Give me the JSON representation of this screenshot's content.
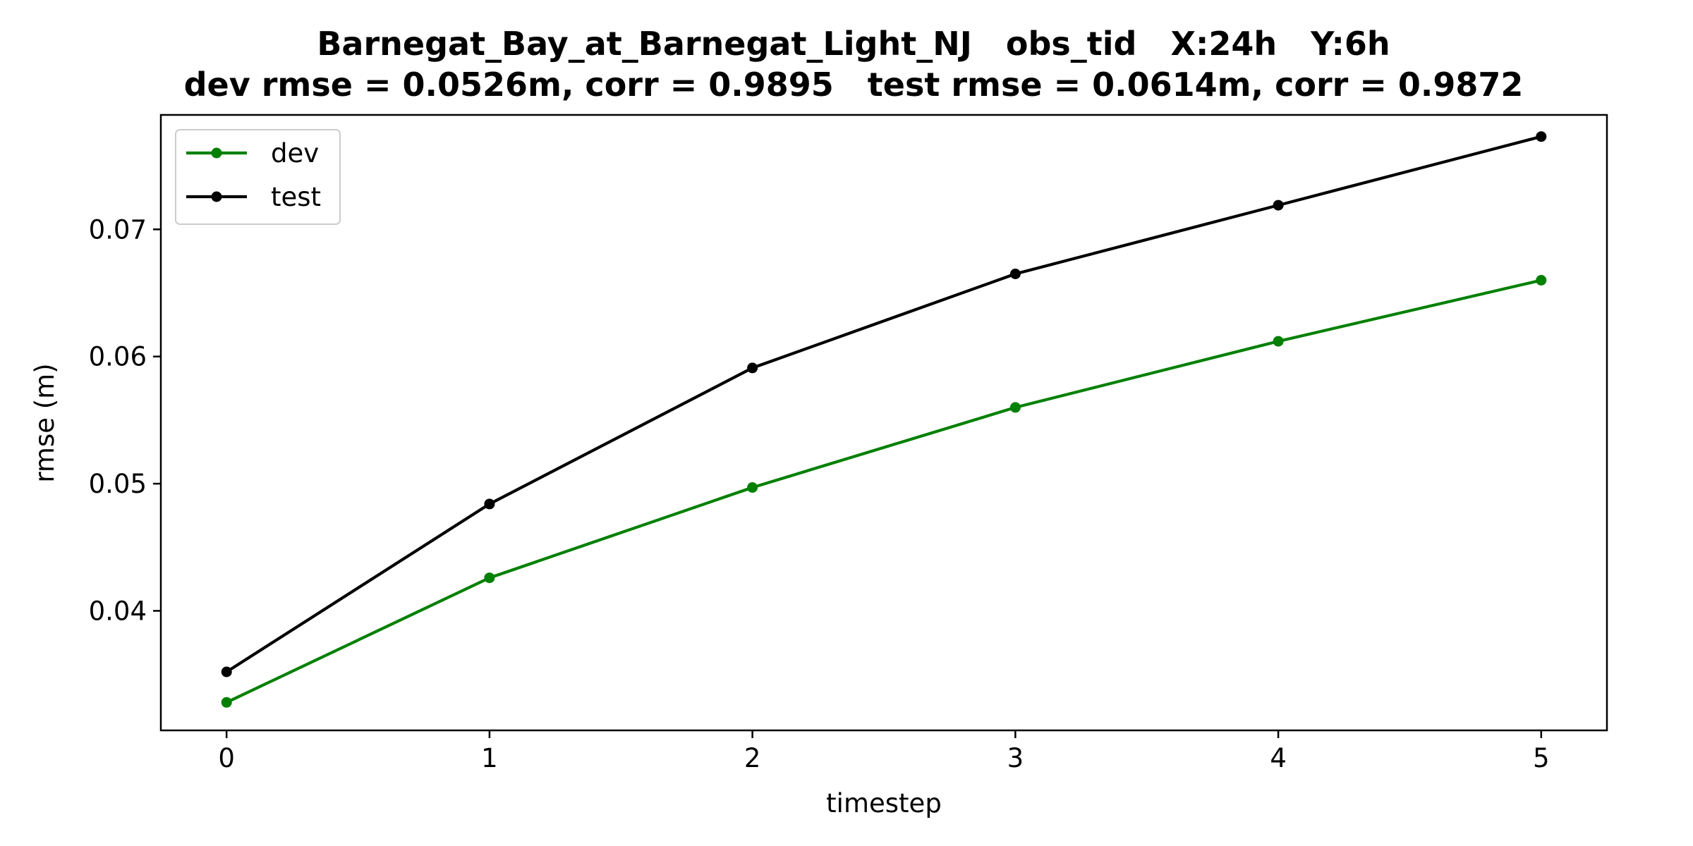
{
  "chart_data": {
    "type": "line",
    "title": "Barnegat_Bay_at_Barnegat_Light_NJ   obs_tid   X:24h   Y:6h",
    "subtitle": "dev rmse = 0.0526m, corr = 0.9895   test rmse = 0.0614m, corr = 0.9872",
    "xlabel": "timestep",
    "ylabel": "rmse (m)",
    "x": [
      0,
      1,
      2,
      3,
      4,
      5
    ],
    "xlim": [
      -0.25,
      5.25
    ],
    "ylim": [
      0.0306,
      0.079
    ],
    "x_ticks": [
      "0",
      "1",
      "2",
      "3",
      "4",
      "5"
    ],
    "y_ticks": [
      {
        "value": 0.04,
        "label": "0.04"
      },
      {
        "value": 0.05,
        "label": "0.05"
      },
      {
        "value": 0.06,
        "label": "0.06"
      },
      {
        "value": 0.07,
        "label": "0.07"
      }
    ],
    "grid": false,
    "legend_position": "upper-left",
    "series": [
      {
        "name": "dev",
        "color": "#008000",
        "values": [
          0.0328,
          0.0426,
          0.0497,
          0.056,
          0.0612,
          0.066
        ]
      },
      {
        "name": "test",
        "color": "#000000",
        "values": [
          0.0352,
          0.0484,
          0.0591,
          0.0665,
          0.0719,
          0.0773
        ]
      }
    ]
  }
}
